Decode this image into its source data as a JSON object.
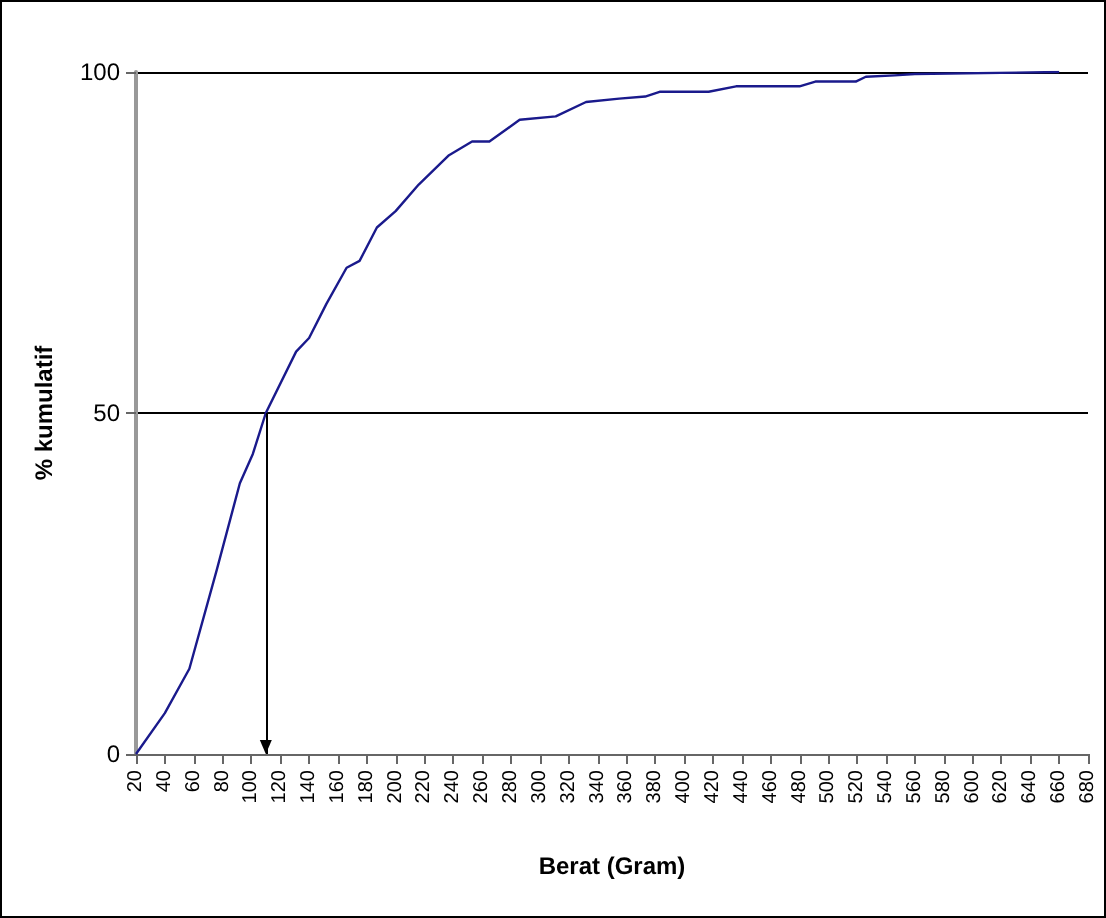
{
  "chart_data": {
    "type": "line",
    "xlabel": "Berat (Gram)",
    "ylabel": "% kumulatif",
    "series": [
      {
        "color": "#1a1a8c",
        "x": [
          20,
          40,
          57,
          76,
          92,
          101,
          110,
          131,
          140,
          152,
          166,
          175,
          187,
          200,
          216,
          237,
          253,
          265,
          286,
          311,
          332,
          355,
          373,
          383,
          417,
          436,
          480,
          491,
          519,
          526,
          546,
          560,
          660
        ],
        "values": [
          0,
          6,
          12.5,
          27,
          39.7,
          44,
          50,
          59,
          61,
          66,
          71.3,
          72.3,
          77.2,
          79.6,
          83.5,
          87.8,
          89.8,
          89.8,
          93,
          93.5,
          95.6,
          96.1,
          96.4,
          97.1,
          97.1,
          97.9,
          97.9,
          98.6,
          98.6,
          99.3,
          99.5,
          99.7,
          100
        ]
      }
    ],
    "xlim": [
      20,
      680
    ],
    "xticks": [
      20,
      40,
      60,
      80,
      100,
      120,
      140,
      160,
      180,
      200,
      220,
      240,
      260,
      280,
      300,
      320,
      340,
      360,
      380,
      400,
      420,
      440,
      460,
      480,
      500,
      520,
      540,
      560,
      580,
      600,
      620,
      640,
      660,
      680
    ],
    "ylim": [
      0,
      100
    ],
    "yticks": [
      0,
      50,
      100
    ],
    "grid": "y",
    "marker": "none",
    "line_style": "solid",
    "ref_lines": [
      {
        "axis": "x",
        "value": 110,
        "color": "#000000"
      }
    ]
  }
}
